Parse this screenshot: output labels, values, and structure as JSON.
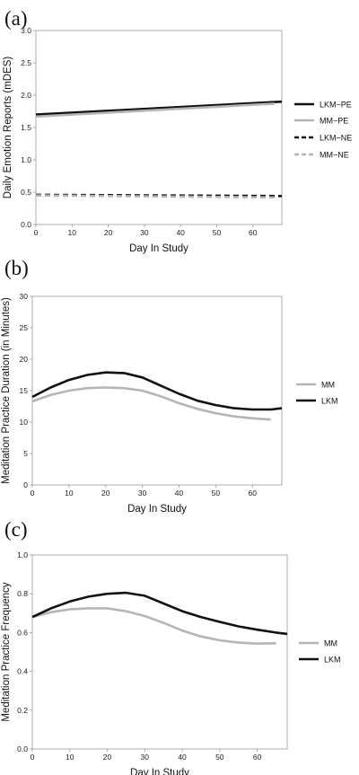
{
  "chart_data": [
    {
      "panel": "(a)",
      "type": "line",
      "xlabel": "Day In Study",
      "ylabel": "Daily Emotion Reports (mDES)",
      "xlim": [
        0,
        68
      ],
      "ylim": [
        0,
        3.0
      ],
      "xticks": [
        0,
        10,
        20,
        30,
        40,
        50,
        60
      ],
      "yticks": [
        "0.0",
        "0.5",
        "1.0",
        "1.5",
        "2.0",
        "2.5",
        "3.0"
      ],
      "legend": "right",
      "series": [
        {
          "name": "LKM−PE",
          "color": "#111111",
          "dash": "solid",
          "x": [
            0,
            68
          ],
          "y": [
            1.7,
            1.9
          ]
        },
        {
          "name": "MM−PE",
          "color": "#b5b5b5",
          "dash": "solid",
          "x": [
            0,
            66
          ],
          "y": [
            1.67,
            1.87
          ]
        },
        {
          "name": "LKM−NE",
          "color": "#111111",
          "dash": "dashed",
          "x": [
            0,
            68
          ],
          "y": [
            0.46,
            0.44
          ]
        },
        {
          "name": "MM−NE",
          "color": "#b5b5b5",
          "dash": "dashed",
          "x": [
            0,
            66
          ],
          "y": [
            0.45,
            0.42
          ]
        }
      ]
    },
    {
      "panel": "(b)",
      "type": "line",
      "xlabel": "Day In Study",
      "ylabel": "Meditation Practice Duration (in Minutes)",
      "xlim": [
        0,
        68
      ],
      "ylim": [
        0,
        30
      ],
      "xticks": [
        0,
        10,
        20,
        30,
        40,
        50,
        60
      ],
      "yticks": [
        "0",
        "5",
        "10",
        "15",
        "20",
        "25",
        "30"
      ],
      "legend": "right",
      "series": [
        {
          "name": "MM",
          "color": "#b5b5b5",
          "dash": "solid",
          "x": [
            0,
            5,
            10,
            15,
            20,
            25,
            30,
            35,
            40,
            45,
            50,
            55,
            60,
            65
          ],
          "y": [
            13.3,
            14.3,
            15.0,
            15.4,
            15.5,
            15.4,
            15.0,
            14.1,
            13.0,
            12.1,
            11.4,
            10.9,
            10.6,
            10.4
          ]
        },
        {
          "name": "LKM",
          "color": "#111111",
          "dash": "solid",
          "x": [
            0,
            5,
            10,
            15,
            20,
            25,
            30,
            35,
            40,
            45,
            50,
            55,
            60,
            65,
            68
          ],
          "y": [
            14.0,
            15.5,
            16.7,
            17.5,
            17.9,
            17.8,
            17.1,
            15.8,
            14.5,
            13.4,
            12.7,
            12.2,
            12.0,
            12.0,
            12.2
          ]
        }
      ]
    },
    {
      "panel": "(c)",
      "type": "line",
      "xlabel": "Day In Study",
      "ylabel": "Meditation Practice Frequency",
      "xlim": [
        0,
        68
      ],
      "ylim": [
        0,
        1.0
      ],
      "xticks": [
        0,
        10,
        20,
        30,
        40,
        50,
        60
      ],
      "yticks": [
        "0.0",
        "0.2",
        "0.4",
        "0.6",
        "0.8",
        "1.0"
      ],
      "legend": "right",
      "series": [
        {
          "name": "MM",
          "color": "#b5b5b5",
          "dash": "solid",
          "x": [
            0,
            5,
            10,
            15,
            20,
            25,
            30,
            35,
            40,
            45,
            50,
            55,
            60,
            65
          ],
          "y": [
            0.68,
            0.705,
            0.72,
            0.725,
            0.725,
            0.71,
            0.685,
            0.65,
            0.61,
            0.58,
            0.56,
            0.548,
            0.543,
            0.545
          ]
        },
        {
          "name": "LKM",
          "color": "#111111",
          "dash": "solid",
          "x": [
            0,
            5,
            10,
            15,
            20,
            25,
            30,
            35,
            40,
            45,
            50,
            55,
            60,
            65,
            68
          ],
          "y": [
            0.68,
            0.725,
            0.76,
            0.785,
            0.8,
            0.805,
            0.79,
            0.75,
            0.71,
            0.68,
            0.655,
            0.632,
            0.615,
            0.6,
            0.593
          ]
        }
      ]
    }
  ]
}
